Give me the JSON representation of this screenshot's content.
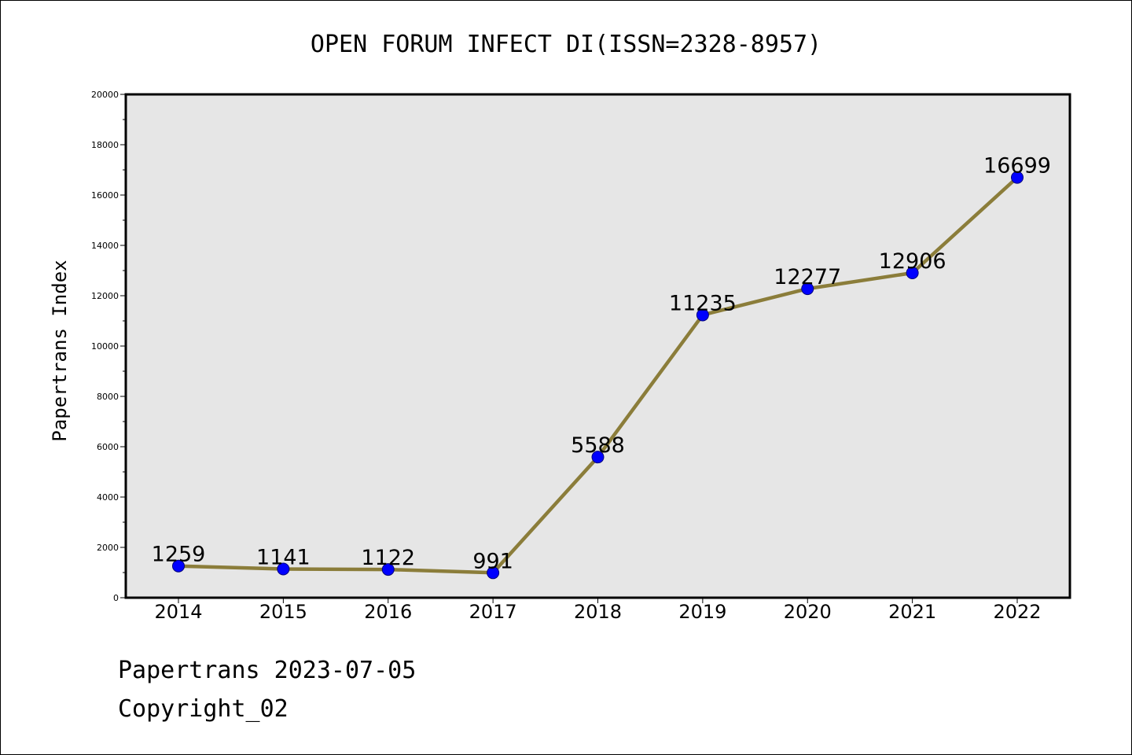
{
  "chart_data": {
    "type": "line",
    "title": "OPEN FORUM INFECT DI(ISSN=2328-8957)",
    "xlabel": "",
    "ylabel": "Papertrans Index",
    "categories": [
      "2014",
      "2015",
      "2016",
      "2017",
      "2018",
      "2019",
      "2020",
      "2021",
      "2022"
    ],
    "values": [
      1259,
      1141,
      1122,
      991,
      5588,
      11235,
      12277,
      12906,
      16699
    ],
    "data_labels": [
      "1259",
      "1141",
      "1122",
      "991",
      "5588",
      "11235",
      "12277",
      "12906",
      "16699"
    ],
    "ylim": [
      0,
      20000
    ],
    "y_ticks": [
      0,
      2000,
      4000,
      6000,
      8000,
      10000,
      12000,
      14000,
      16000,
      18000,
      20000
    ],
    "y_tick_labels": [
      "0",
      "2000",
      "4000",
      "6000",
      "8000",
      "10000",
      "12000",
      "14000",
      "16000",
      "18000",
      "20000"
    ],
    "grid": false,
    "legend": "none",
    "colors": {
      "line": "#8b7d3a",
      "marker": "#0000ff",
      "plot_background": "#e6e6e6",
      "axes": "#000000"
    }
  },
  "footer": {
    "line1": "Papertrans 2023-07-05",
    "line2": "Copyright_02"
  }
}
